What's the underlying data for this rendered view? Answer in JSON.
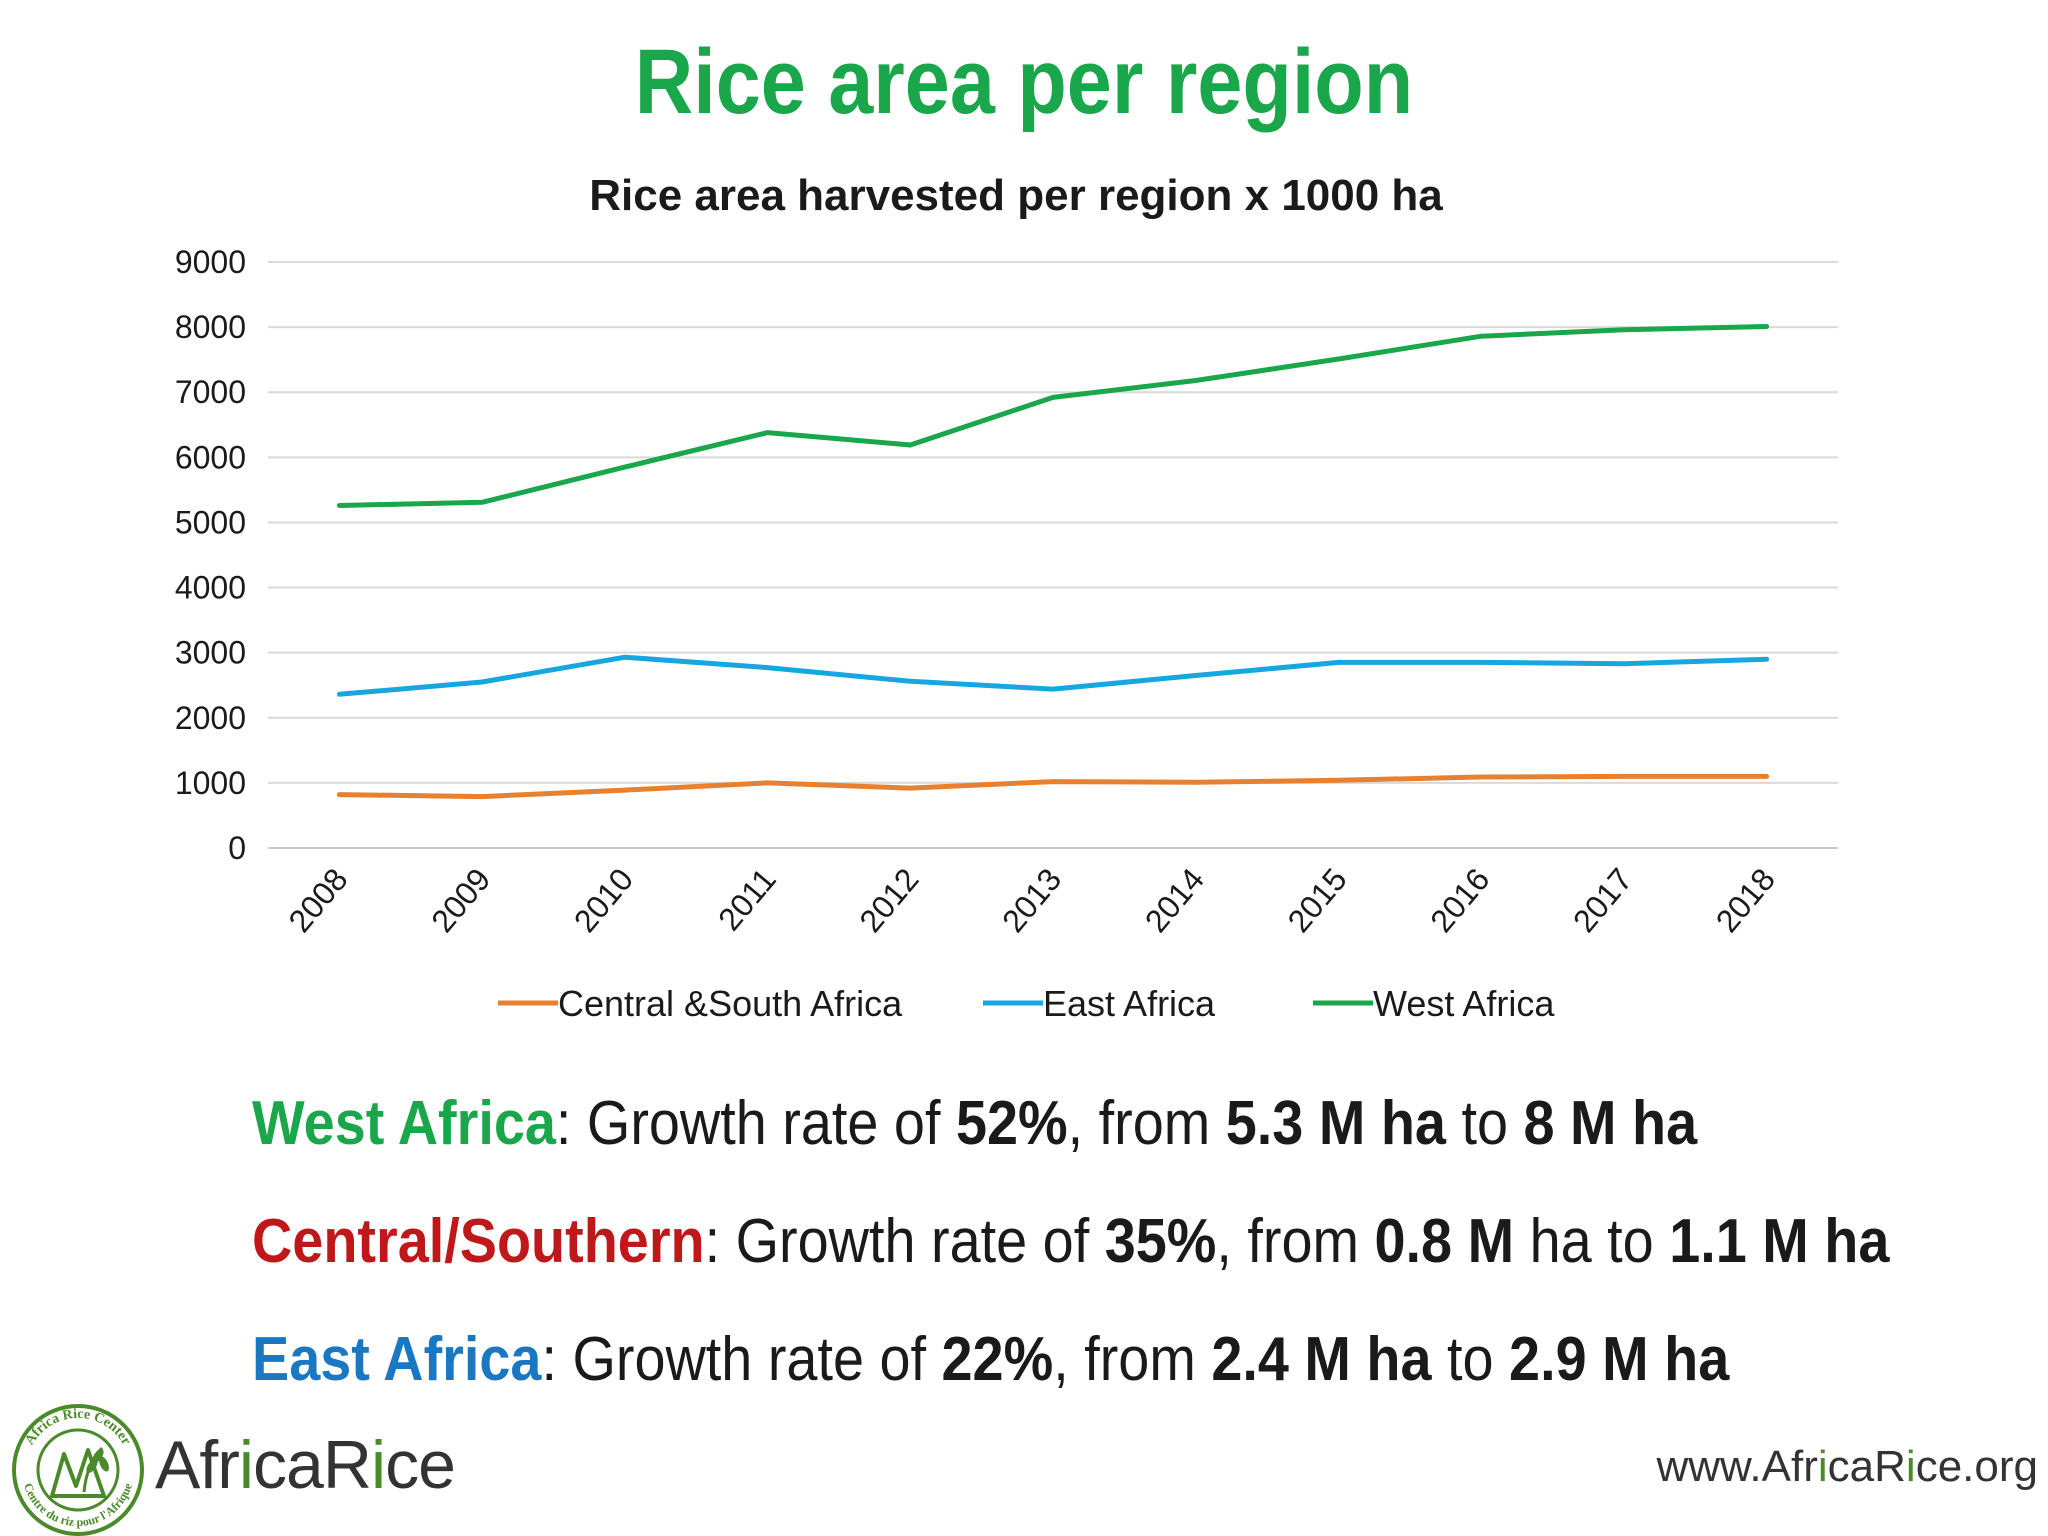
{
  "slide": {
    "title": "Rice area per region"
  },
  "chart_data": {
    "type": "line",
    "title": "Rice area harvested per region  x 1000 ha",
    "xlabel": "",
    "ylabel": "",
    "x": [
      "2008",
      "2009",
      "2010",
      "2011",
      "2012",
      "2013",
      "2014",
      "2015",
      "2016",
      "2017",
      "2018"
    ],
    "ylim": [
      0,
      9000
    ],
    "yticks": [
      "0",
      "1000",
      "2000",
      "3000",
      "4000",
      "5000",
      "6000",
      "7000",
      "8000",
      "9000"
    ],
    "grid": true,
    "legend_position": "bottom",
    "series": [
      {
        "name": "Central &South Africa",
        "color": "#e8812f",
        "values": [
          820,
          790,
          890,
          1000,
          920,
          1020,
          1010,
          1040,
          1090,
          1100,
          1100
        ]
      },
      {
        "name": "East Africa",
        "color": "#16a7e0",
        "values": [
          2360,
          2550,
          2930,
          2770,
          2560,
          2440,
          2650,
          2850,
          2850,
          2830,
          2900
        ]
      },
      {
        "name": "West Africa",
        "color": "#1aa64a",
        "values": [
          5260,
          5310,
          5850,
          6380,
          6190,
          6920,
          7180,
          7510,
          7860,
          7960,
          8010
        ]
      }
    ]
  },
  "stats": [
    {
      "region": "West Africa",
      "color": "#1aa64a",
      "text1": ": Growth rate of ",
      "rate": "52%",
      "text2": ", from ",
      "from": "5.3 M ha",
      "text3": " to ",
      "to": "8 M ha"
    },
    {
      "region": "Central/Southern",
      "color": "#c0171b",
      "text1": ": Growth rate of ",
      "rate": "35%",
      "text2": ", from ",
      "from": "0.8 M",
      "text3": " ha to ",
      "to": "1.1 M ha"
    },
    {
      "region": "East Africa",
      "color": "#1a78c2",
      "text1": ": Growth rate of ",
      "rate": "22%",
      "text2": ", from ",
      "from": "2.4 M ha",
      "text3": " to ",
      "to": "2.9 M ha"
    }
  ],
  "logo": {
    "name_part1": "Afr",
    "name_accent1": "i",
    "name_part2": "ca",
    "name_part3": "R",
    "name_accent2": "i",
    "name_part4": "ce",
    "ring_text_top": "Africa Rice Center",
    "ring_text_bottom": "Centre du riz pour l'Afrique"
  },
  "website": {
    "part1": "www.Afr",
    "accent1": "i",
    "part2": "ca",
    "accent_word": "R",
    "accent2": "i",
    "part3": "ce",
    "part4": ".org"
  }
}
